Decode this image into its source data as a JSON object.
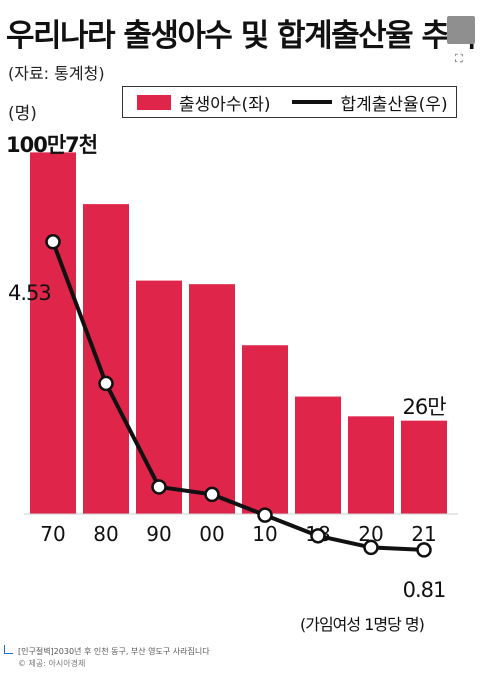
{
  "title": "우리나라 출생아수 및 합계출산율 추이",
  "source": "(자료: 통계청)",
  "unit_left": "(명)",
  "legend": {
    "bar_label": "출생아수(좌)",
    "line_label": "합계출산율(우)"
  },
  "annotations": {
    "first_bar": "100만7천",
    "last_bar": "26만",
    "first_line": "4.53",
    "last_line": "0.81",
    "line_unit": "(가임여성 1명당 명)"
  },
  "footer": {
    "line1": "[인구절벽]2030년 후 인천 동구, 부산 영도구 사라집니다",
    "line2": "© 제공: 아시아경제"
  },
  "colors": {
    "bar": "#e0254a",
    "line": "#111111"
  },
  "chart_data": {
    "type": "bar",
    "categories": [
      "70",
      "80",
      "90",
      "00",
      "10",
      "18",
      "20",
      "21"
    ],
    "series": [
      {
        "name": "출생아수(좌)",
        "type": "bar",
        "unit": "명",
        "values": [
          1007000,
          863000,
          650000,
          640000,
          470000,
          327000,
          272000,
          260000
        ]
      },
      {
        "name": "합계출산율(우)",
        "type": "line",
        "unit": "가임여성 1명당 명",
        "values": [
          4.53,
          2.82,
          1.57,
          1.48,
          1.23,
          0.98,
          0.84,
          0.81
        ]
      }
    ],
    "ylim_left": [
      0,
      1100000
    ],
    "ylim_right": [
      0,
      5.3
    ],
    "grid": false,
    "legend_position": "top-right"
  }
}
